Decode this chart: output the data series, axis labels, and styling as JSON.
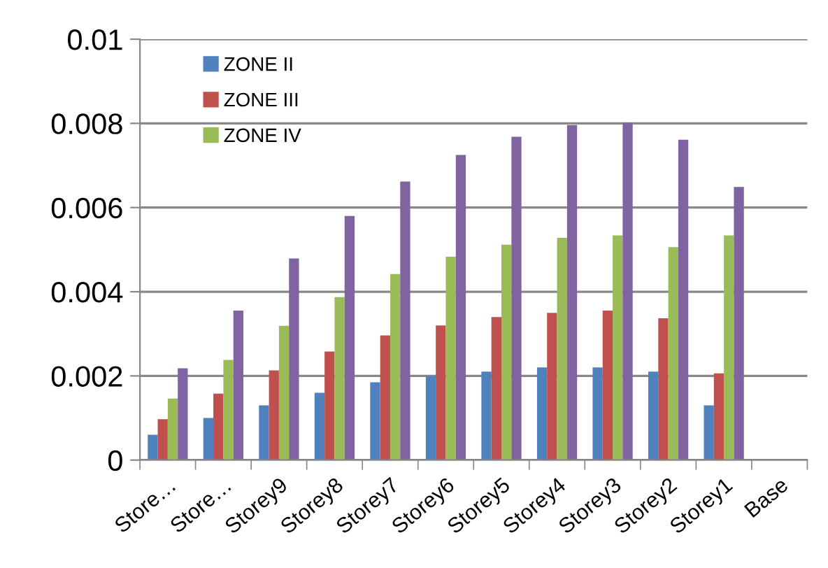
{
  "chart_data": {
    "type": "bar",
    "categories": [
      "Store…",
      "Store…",
      "Storey9",
      "Storey8",
      "Storey7",
      "Storey6",
      "Storey5",
      "Storey4",
      "Storey3",
      "Storey2",
      "Storey1",
      "Base"
    ],
    "series": [
      {
        "name": "ZONE II",
        "color": "#4f81bd",
        "values": [
          0.0006,
          0.001,
          0.0013,
          0.0016,
          0.00185,
          0.002,
          0.0021,
          0.0022,
          0.0022,
          0.0021,
          0.0013,
          0
        ]
      },
      {
        "name": "ZONE III",
        "color": "#c0504d",
        "values": [
          0.00097,
          0.00158,
          0.00213,
          0.00258,
          0.00296,
          0.0032,
          0.0034,
          0.0035,
          0.00355,
          0.00337,
          0.00206,
          0
        ]
      },
      {
        "name": "ZONE IV",
        "color": "#9bbb59",
        "values": [
          0.00146,
          0.00238,
          0.00319,
          0.00387,
          0.00442,
          0.00483,
          0.00512,
          0.00528,
          0.00534,
          0.00506,
          0.00534,
          0
        ]
      },
      {
        "color": "#8064a2",
        "values": [
          0.00218,
          0.00355,
          0.00479,
          0.0058,
          0.00662,
          0.00725,
          0.00768,
          0.00796,
          0.00802,
          0.00761,
          0.00649,
          0
        ]
      }
    ],
    "ylim": [
      0,
      0.01
    ],
    "yticks": [
      0,
      0.002,
      0.004,
      0.006,
      0.008,
      0.01
    ],
    "grid": "y",
    "legend": "top left"
  }
}
